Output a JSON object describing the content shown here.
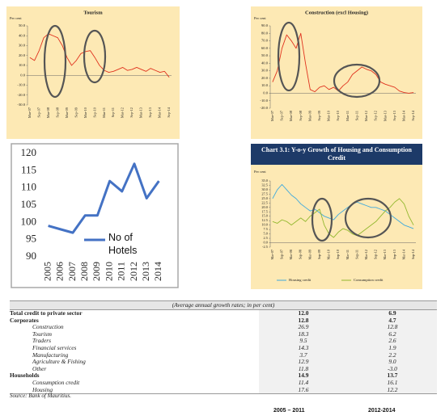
{
  "chart_data": [
    {
      "type": "line",
      "title": "Tourism",
      "ylabel": "Per cent",
      "color": "#e0321e",
      "categories": [
        "Mar-07",
        null,
        "Sep-07",
        null,
        "Mar-08",
        null,
        "Sep-08",
        null,
        "Mar-09",
        null,
        "Sep-09",
        null,
        "Mar-10",
        null,
        "Sep-10",
        null,
        "Mar-11",
        null,
        "Sep-11",
        null,
        "Mar-12",
        null,
        "Sep-12",
        null,
        "Mar-13",
        null,
        "Sep-13",
        null,
        "Mar-14",
        null,
        "Sep-14"
      ],
      "values": [
        18,
        15,
        25,
        38,
        42,
        40,
        38,
        30,
        18,
        10,
        15,
        22,
        24,
        25,
        18,
        10,
        5,
        3,
        4,
        6,
        8,
        5,
        6,
        8,
        6,
        4,
        7,
        5,
        3,
        4,
        -2
      ],
      "ylim": [
        -30,
        50
      ],
      "yticks": [
        {
          "value": 50,
          "label": "50.0"
        },
        {
          "value": 40,
          "label": "40.0"
        },
        {
          "value": 30,
          "label": "30.0"
        },
        {
          "value": 20,
          "label": "20.0"
        },
        {
          "value": 10,
          "label": "10.0"
        },
        {
          "value": 0,
          "label": "0.0"
        },
        {
          "value": -10,
          "label": "-10.0"
        },
        {
          "value": -20,
          "label": "-20.0"
        },
        {
          "value": -30,
          "label": "-30.0"
        }
      ],
      "grid": false
    },
    {
      "type": "line",
      "title": "Construction (excl Housing)",
      "ylabel": "Per cent",
      "color": "#e0321e",
      "categories": [
        "Mar-07",
        null,
        "Sep-07",
        null,
        "Mar-08",
        null,
        "Sep-08",
        null,
        "Mar-09",
        null,
        "Sep-09",
        null,
        "Mar-10",
        null,
        "Sep-10",
        null,
        "Mar-11",
        null,
        "Sep-11",
        null,
        "Mar-12",
        null,
        "Sep-12",
        null,
        "Mar-13",
        null,
        "Sep-13",
        null,
        "Mar-14",
        null,
        "Sep-14"
      ],
      "values": [
        15,
        30,
        60,
        78,
        70,
        60,
        80,
        40,
        5,
        2,
        8,
        10,
        5,
        8,
        3,
        10,
        15,
        25,
        30,
        35,
        32,
        30,
        25,
        15,
        12,
        10,
        8,
        3,
        1,
        0,
        1
      ],
      "ylim": [
        -20,
        90
      ],
      "yticks": [
        {
          "value": 90,
          "label": "90.0"
        },
        {
          "value": 80,
          "label": "80.0"
        },
        {
          "value": 70,
          "label": "70.0"
        },
        {
          "value": 60,
          "label": "60.0"
        },
        {
          "value": 50,
          "label": "50.0"
        },
        {
          "value": 40,
          "label": "40.0"
        },
        {
          "value": 30,
          "label": "30.0"
        },
        {
          "value": 20,
          "label": "20.0"
        },
        {
          "value": 10,
          "label": "10.0"
        },
        {
          "value": 0,
          "label": "0.0"
        },
        {
          "value": -10,
          "label": "-10.0"
        },
        {
          "value": -20,
          "label": "-20.0"
        }
      ],
      "grid": false
    },
    {
      "type": "line",
      "categories": [
        "2005",
        "2006",
        "2007",
        "2008",
        "2009",
        "2010",
        "2011",
        "2012",
        "2013",
        "2014"
      ],
      "series": [
        {
          "name": "No of Hotels",
          "color": "#4472c4",
          "values": [
            99,
            98,
            97,
            102,
            102,
            112,
            109,
            117,
            107,
            112
          ]
        }
      ],
      "ylim": [
        90,
        120
      ],
      "yticks": [
        90,
        95,
        100,
        105,
        110,
        115,
        120
      ],
      "grid": false
    },
    {
      "type": "line",
      "title": "Chart 3.1: Y-o-y Growth of Housing and Consumption Credit",
      "ylabel": "Per cent",
      "categories": [
        "Mar-07",
        null,
        "Sep-07",
        null,
        "Mar-08",
        null,
        "Sep-08",
        null,
        "Mar-09",
        null,
        "Sep-09",
        null,
        "Mar-10",
        null,
        "Sep-10",
        null,
        "Mar-11",
        null,
        "Sep-11",
        null,
        "Mar-12",
        null,
        "Sep-12",
        null,
        "Mar-13",
        null,
        "Sep-13",
        null,
        "Mar-14",
        null,
        "Sep-14"
      ],
      "series": [
        {
          "name": "Housing credit",
          "color": "#3fa9dd",
          "values": [
            25,
            30,
            33,
            30,
            27,
            25,
            22,
            20,
            18,
            19,
            17,
            15,
            14,
            13,
            16,
            18,
            20,
            22,
            23,
            22,
            21,
            20,
            20,
            19,
            18,
            16,
            14,
            12,
            10,
            9,
            8
          ]
        },
        {
          "name": "Consumption credit",
          "color": "#93b82e",
          "values": [
            12,
            11,
            13,
            12,
            10,
            12,
            14,
            12,
            15,
            17,
            19,
            10,
            5,
            3,
            6,
            8,
            7,
            5,
            4,
            6,
            8,
            10,
            12,
            15,
            18,
            20,
            23,
            25,
            22,
            15,
            10
          ]
        }
      ],
      "ylim": [
        -2.5,
        35
      ],
      "yticks": [
        {
          "value": 35,
          "label": "35.0"
        },
        32.5,
        {
          "value": 30,
          "label": "30.0"
        },
        27.5,
        {
          "value": 25,
          "label": "25.0"
        },
        22.5,
        {
          "value": 20,
          "label": "20.0"
        },
        17.5,
        {
          "value": 15,
          "label": "15.0"
        },
        12.5,
        {
          "value": 10,
          "label": "10.0"
        },
        7.5,
        {
          "value": 5,
          "label": "5.0"
        },
        2.5,
        {
          "value": 0,
          "label": "0.0"
        },
        -2.5
      ],
      "grid": false
    }
  ],
  "table": {
    "caption": "(Average annual growth rates; in per cent)",
    "rows": [
      [
        "Total credit to private sector",
        "12.0",
        "6.9"
      ],
      [
        "Corporates",
        "12.8",
        "4.7"
      ],
      [
        "Construction",
        "26.9",
        "12.8"
      ],
      [
        "Tourism",
        "18.3",
        "6.2"
      ],
      [
        "Traders",
        "9.5",
        "2.6"
      ],
      [
        "Financial services",
        "14.3",
        "1.9"
      ],
      [
        "Manufacturing",
        "3.7",
        "2.2"
      ],
      [
        "Agriculture & Fishing",
        "12.9",
        "9.0"
      ],
      [
        "Other",
        "11.8",
        "-3.0"
      ],
      [
        "Households",
        "14.9",
        "13.7"
      ],
      [
        "Consumption credit",
        "11.4",
        "16.1"
      ],
      [
        "Housing",
        "17.6",
        "12.2"
      ]
    ],
    "source": "Source:  Bank of Mauritius.",
    "column_headers": [
      "2005 – 2011",
      "2012-2014"
    ]
  }
}
